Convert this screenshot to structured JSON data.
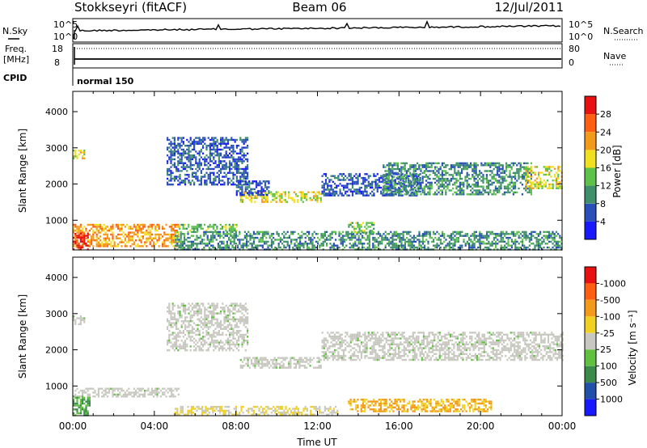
{
  "header": {
    "station": "Stokkseyri (fitACF)",
    "beam": "Beam 06",
    "date": "12/Jul/2011"
  },
  "top_panel": {
    "left_label": "N.Sky",
    "right_label": "N.Search",
    "tick_high": "10^5",
    "tick_low": "10^0"
  },
  "freq_panel": {
    "left_label_1": "Freq.",
    "left_label_2": "[MHz]",
    "left_tick_high": "18",
    "left_tick_low": "8",
    "right_label": "Nave",
    "right_tick_high": "80",
    "right_tick_low": "0"
  },
  "cpid": {
    "label": "CPID",
    "mode": "normal 150"
  },
  "chart_data": [
    {
      "type": "heatmap",
      "title": "",
      "xlabel": "",
      "ylabel": "Slant Range [km]",
      "xlim": [
        0,
        24
      ],
      "ylim": [
        180,
        4560
      ],
      "yticks": [
        "1000",
        "2000",
        "3000",
        "4000"
      ],
      "colorbar": {
        "label": "Power [dB]",
        "tick_labels": [
          "4",
          "8",
          "12",
          "16",
          "20",
          "24",
          "28"
        ],
        "colors": [
          "#1919ff",
          "#2850b8",
          "#3f8f6a",
          "#5cc24a",
          "#f0e020",
          "#f39a1a",
          "#ff6010",
          "#e81010"
        ]
      },
      "echo_bands": [
        {
          "x": [
            0.0,
            0.6
          ],
          "range": [
            2700,
            2950
          ],
          "level": 4
        },
        {
          "x": [
            0.0,
            5.2
          ],
          "range": [
            300,
            900
          ],
          "level": 5
        },
        {
          "x": [
            0.0,
            0.7
          ],
          "range": [
            200,
            650
          ],
          "level": 7
        },
        {
          "x": [
            5.2,
            8.0
          ],
          "range": [
            700,
            900
          ],
          "level": 3
        },
        {
          "x": [
            4.6,
            8.6
          ],
          "range": [
            2000,
            3300
          ],
          "level": 1
        },
        {
          "x": [
            8.2,
            12.2
          ],
          "range": [
            1500,
            1800
          ],
          "level": 4
        },
        {
          "x": [
            8.0,
            9.6
          ],
          "range": [
            1700,
            2100
          ],
          "level": 1
        },
        {
          "x": [
            12.2,
            17.0
          ],
          "range": [
            1700,
            2300
          ],
          "level": 1
        },
        {
          "x": [
            15.2,
            22.5
          ],
          "range": [
            1700,
            2600
          ],
          "level": 2
        },
        {
          "x": [
            22.2,
            24.0
          ],
          "range": [
            1900,
            2500
          ],
          "level": 4
        },
        {
          "x": [
            5.0,
            24.0
          ],
          "range": [
            200,
            700
          ],
          "level": 2
        },
        {
          "x": [
            13.5,
            14.8
          ],
          "range": [
            650,
            950
          ],
          "level": 3
        }
      ]
    },
    {
      "type": "heatmap",
      "title": "",
      "xlabel": "Time UT",
      "ylabel": "Slant Range [km]",
      "xlim": [
        0,
        24
      ],
      "ylim": [
        180,
        4560
      ],
      "xticks": [
        "00:00",
        "04:00",
        "08:00",
        "12:00",
        "16:00",
        "20:00",
        "00:00"
      ],
      "yticks": [
        "1000",
        "2000",
        "3000",
        "4000"
      ],
      "colorbar": {
        "label": "Velocity [m s⁻¹]",
        "tick_labels": [
          "1000",
          "500",
          "100",
          "25",
          "-25",
          "-100",
          "-500",
          "-1000"
        ],
        "colors": [
          "#1919ff",
          "#2050a8",
          "#3a8a4a",
          "#60c040",
          "#c8c8c0",
          "#f0d020",
          "#f39a1a",
          "#ff6010",
          "#e81010"
        ]
      },
      "echo_bands": [
        {
          "x": [
            0.0,
            0.6
          ],
          "range": [
            2700,
            2950
          ],
          "class": "ground"
        },
        {
          "x": [
            0.0,
            5.2
          ],
          "range": [
            700,
            950
          ],
          "class": "ground"
        },
        {
          "x": [
            0.0,
            0.8
          ],
          "range": [
            200,
            700
          ],
          "class": "positive"
        },
        {
          "x": [
            4.6,
            8.6
          ],
          "range": [
            2000,
            3300
          ],
          "class": "ground"
        },
        {
          "x": [
            8.2,
            12.2
          ],
          "range": [
            1500,
            1800
          ],
          "class": "ground"
        },
        {
          "x": [
            12.2,
            24.0
          ],
          "range": [
            1700,
            2500
          ],
          "class": "ground"
        },
        {
          "x": [
            5.0,
            13.0
          ],
          "range": [
            200,
            450
          ],
          "class": "negative_small"
        },
        {
          "x": [
            13.5,
            20.5
          ],
          "range": [
            300,
            650
          ],
          "class": "negative_medium"
        }
      ]
    }
  ]
}
